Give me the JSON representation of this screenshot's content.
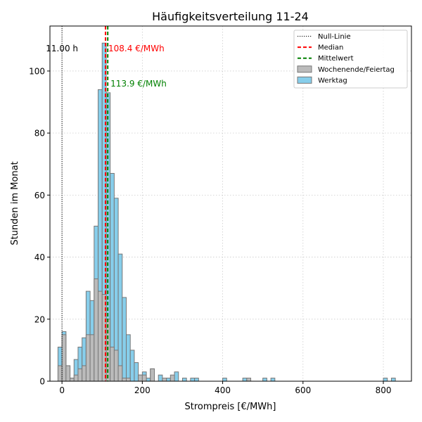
{
  "chart_data": {
    "type": "bar",
    "title": "Häufigkeitsverteilung 11-24",
    "xlabel": "Strompreis [€/MWh]",
    "ylabel": "Stunden im Monat",
    "xlim": [
      -30,
      870
    ],
    "ylim": [
      0,
      114.5
    ],
    "xticks": [
      0,
      200,
      400,
      600,
      800
    ],
    "yticks": [
      0,
      20,
      40,
      60,
      80,
      100
    ],
    "grid": true,
    "bin_width": 10,
    "legend_position": "top-right",
    "legend": [
      {
        "label": "Null-Linie",
        "style": "dotted",
        "color": "#000000"
      },
      {
        "label": "Median",
        "style": "dashed",
        "color": "#ff0000"
      },
      {
        "label": "Mittelwert",
        "style": "dashed",
        "color": "#008000"
      },
      {
        "label": "Wochenende/Feiertag",
        "style": "bar",
        "color": "#bbbbbb"
      },
      {
        "label": "Werktag",
        "style": "bar",
        "color": "#87ceeb"
      }
    ],
    "series": [
      {
        "name": "Werktag",
        "color": "#87ceeb",
        "bins": [
          [
            -10,
            11
          ],
          [
            0,
            16
          ],
          [
            10,
            5
          ],
          [
            20,
            1
          ],
          [
            30,
            7
          ],
          [
            40,
            11
          ],
          [
            50,
            14
          ],
          [
            60,
            29
          ],
          [
            70,
            26
          ],
          [
            80,
            50
          ],
          [
            90,
            94
          ],
          [
            100,
            109
          ],
          [
            110,
            93
          ],
          [
            120,
            67
          ],
          [
            130,
            59
          ],
          [
            140,
            41
          ],
          [
            150,
            27
          ],
          [
            160,
            15
          ],
          [
            170,
            10
          ],
          [
            180,
            6
          ],
          [
            190,
            2
          ],
          [
            200,
            3
          ],
          [
            210,
            1
          ],
          [
            220,
            4
          ],
          [
            240,
            2
          ],
          [
            260,
            1
          ],
          [
            280,
            3
          ],
          [
            300,
            1
          ],
          [
            320,
            1
          ],
          [
            330,
            1
          ],
          [
            400,
            1
          ],
          [
            450,
            1
          ],
          [
            500,
            1
          ],
          [
            520,
            1
          ],
          [
            800,
            1
          ],
          [
            820,
            1
          ]
        ]
      },
      {
        "name": "Wochenende/Feiertag",
        "color": "#bbbbbb",
        "bins": [
          [
            -10,
            5
          ],
          [
            0,
            15
          ],
          [
            10,
            5
          ],
          [
            20,
            1
          ],
          [
            30,
            2
          ],
          [
            40,
            4
          ],
          [
            50,
            5
          ],
          [
            60,
            15
          ],
          [
            70,
            15
          ],
          [
            80,
            33
          ],
          [
            90,
            29
          ],
          [
            100,
            28
          ],
          [
            110,
            20
          ],
          [
            120,
            11
          ],
          [
            130,
            10
          ],
          [
            140,
            5
          ],
          [
            150,
            1
          ],
          [
            160,
            1
          ],
          [
            190,
            2
          ],
          [
            200,
            2
          ],
          [
            220,
            4
          ],
          [
            250,
            1
          ],
          [
            270,
            2
          ],
          [
            460,
            1
          ]
        ]
      }
    ],
    "reference_lines": [
      {
        "name": "Null-Linie",
        "x": 0,
        "color": "#000000",
        "style": "dotted",
        "label": "11.00 h"
      },
      {
        "name": "Median",
        "x": 108.4,
        "color": "#ff0000",
        "style": "dashed",
        "label": "108.4 €/MWh"
      },
      {
        "name": "Mittelwert",
        "x": 113.9,
        "color": "#008000",
        "style": "dashed",
        "label": "113.9 €/MWh"
      }
    ]
  }
}
